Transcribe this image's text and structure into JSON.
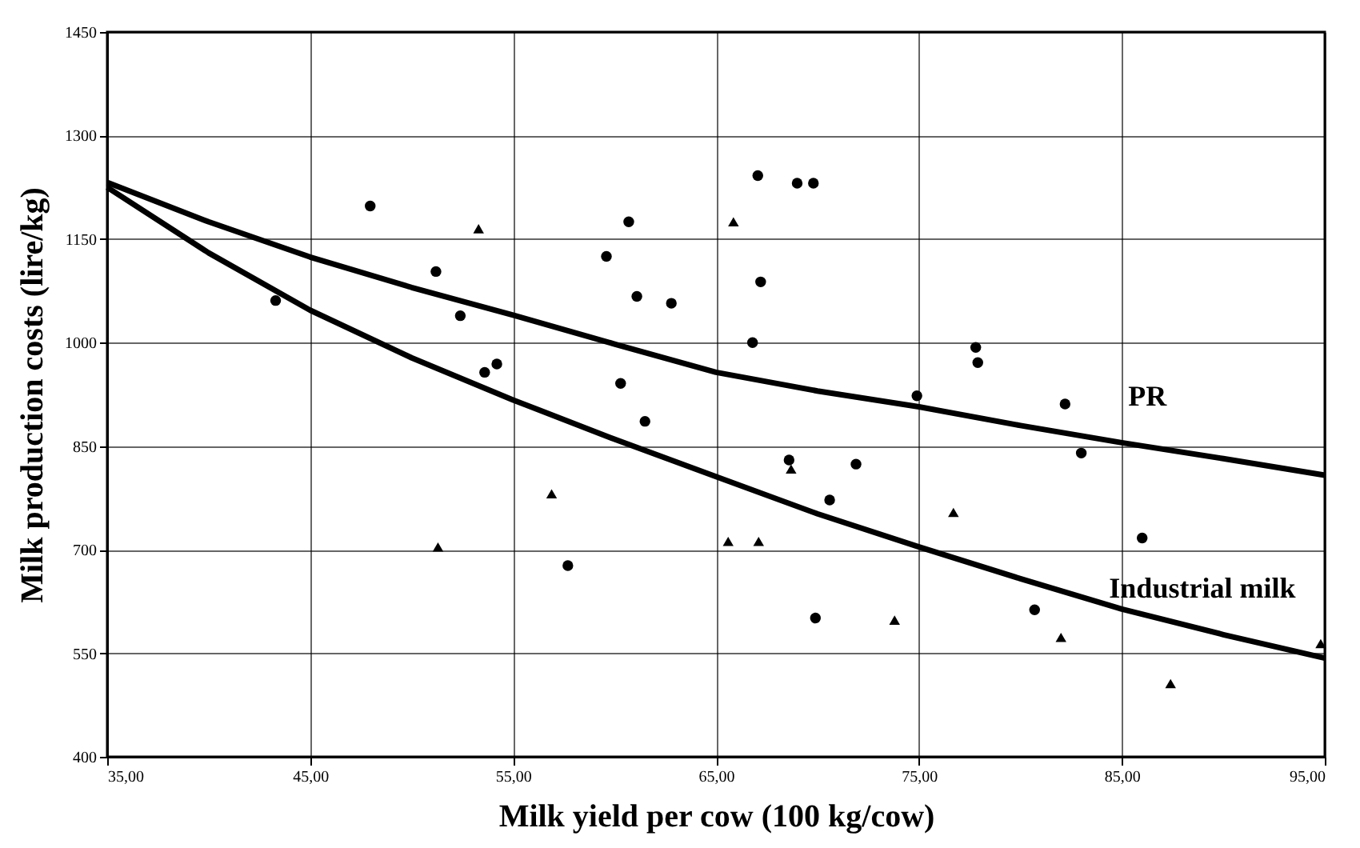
{
  "chart_data": {
    "type": "scatter",
    "xlabel": "Milk yield per cow (100 kg/cow)",
    "ylabel": "Milk production costs (lire/kg)",
    "xlim": [
      35,
      95
    ],
    "xticks": [
      {
        "value": 35,
        "label": "35,00"
      },
      {
        "value": 45,
        "label": "45,00"
      },
      {
        "value": 55,
        "label": "55,00"
      },
      {
        "value": 65,
        "label": "65,00"
      },
      {
        "value": 75,
        "label": "75,00"
      },
      {
        "value": 85,
        "label": "85,00"
      },
      {
        "value": 95,
        "label": "95,00"
      }
    ],
    "ylim": [
      400,
      1450
    ],
    "yticks": [
      400,
      550,
      700,
      850,
      1000,
      1150,
      1300,
      1450
    ],
    "grid": true,
    "series": [
      {
        "type": "scatter",
        "marker": "circle",
        "color": "#000000",
        "x": [
          47.96,
          51.2,
          43.3,
          52.4,
          54.2,
          53.6,
          59.6,
          60.7,
          61.1,
          62.8,
          60.3,
          61.5,
          57.7,
          67.06,
          69.0,
          69.8,
          67.2,
          66.8,
          77.8,
          77.9,
          74.9,
          82.2,
          83.0,
          68.6,
          71.9,
          70.6,
          86.0,
          69.9,
          80.7
        ],
        "values": [
          1198,
          1103,
          1061,
          1039,
          969,
          957,
          1125,
          1175,
          1067,
          1057,
          941,
          886,
          677,
          1242,
          1231,
          1231,
          1088,
          1000,
          993,
          971,
          923,
          911,
          840,
          830,
          824,
          772,
          717,
          601,
          613
        ]
      },
      {
        "type": "scatter",
        "marker": "triangle",
        "color": "#000000",
        "x": [
          53.3,
          56.9,
          51.3,
          65.86,
          68.7,
          76.7,
          65.6,
          67.1,
          73.8,
          82.0,
          87.4,
          94.8
        ],
        "values": [
          1165,
          781,
          704,
          1175,
          817,
          754,
          712,
          712,
          598,
          573,
          506,
          564
        ]
      },
      {
        "type": "line",
        "name": "PR",
        "color": "#000000",
        "line_style": "solid",
        "x": [
          35,
          40,
          45,
          50,
          55,
          60,
          65,
          70,
          75,
          80,
          85,
          90,
          95
        ],
        "values": [
          1232,
          1175,
          1124,
          1080,
          1040,
          998,
          957,
          930,
          907,
          880,
          855,
          832,
          808
        ]
      },
      {
        "type": "line",
        "name": "Industrial milk",
        "color": "#000000",
        "line_style": "solid",
        "x": [
          35,
          40,
          45,
          50,
          55,
          60,
          65,
          70,
          75,
          80,
          85,
          90,
          95
        ],
        "values": [
          1225,
          1130,
          1047,
          978,
          917,
          860,
          806,
          752,
          704,
          658,
          614,
          577,
          543
        ]
      }
    ]
  }
}
